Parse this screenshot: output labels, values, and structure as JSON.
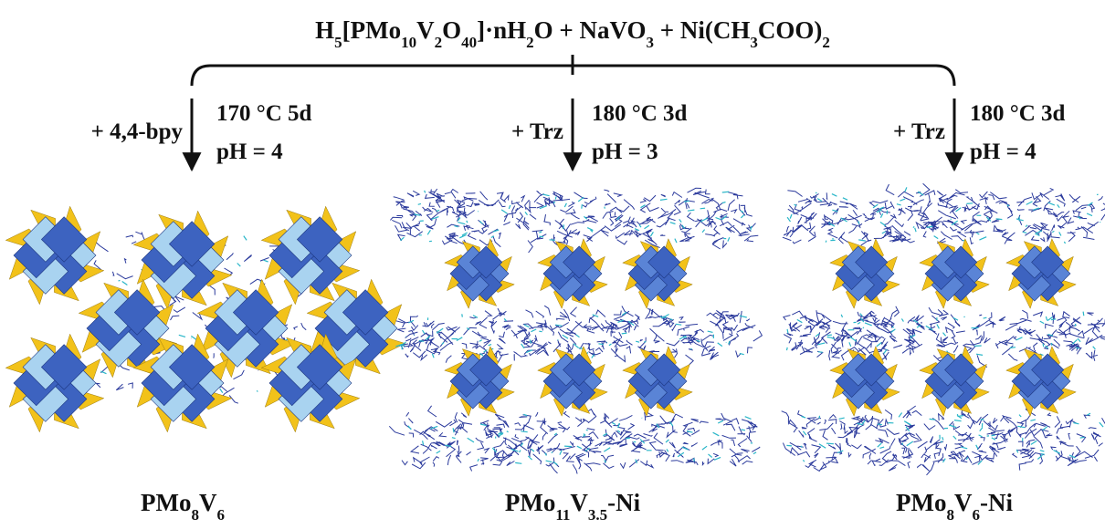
{
  "header": {
    "reaction": "H5[PMo10V2O40]·nH2O + NaVO3 + Ni(CH3COO)2"
  },
  "routes": [
    {
      "reagent": "+ 4,4-bpy",
      "conditions": "170 °C 5d",
      "ph": "pH = 4",
      "product": "PMo8V6"
    },
    {
      "reagent": "+ Trz",
      "conditions": "180 °C 3d",
      "ph": "pH = 3",
      "product": "PMo11V3.5-Ni"
    },
    {
      "reagent": "+ Trz",
      "conditions": "180 °C 3d",
      "ph": "pH = 4",
      "product": "PMo8V6-Ni"
    }
  ]
}
